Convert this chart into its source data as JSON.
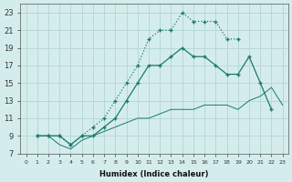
{
  "xlabel": "Humidex (Indice chaleur)",
  "background_color": "#d4edec",
  "grid_color": "#b8d8d5",
  "line_color": "#1a7a6e",
  "xlim": [
    -0.5,
    23.5
  ],
  "ylim": [
    7,
    24
  ],
  "xticks": [
    0,
    1,
    2,
    3,
    4,
    5,
    6,
    7,
    8,
    9,
    10,
    11,
    12,
    13,
    14,
    15,
    16,
    17,
    18,
    19,
    20,
    21,
    22,
    23
  ],
  "yticks": [
    7,
    9,
    11,
    13,
    15,
    17,
    19,
    21,
    23
  ],
  "line1_x": [
    1,
    2,
    3,
    4,
    5,
    6,
    7,
    8,
    9,
    10,
    11,
    12,
    13,
    14,
    15,
    16,
    17,
    18,
    19
  ],
  "line1_y": [
    9,
    9,
    9,
    8,
    9,
    10,
    11,
    13,
    15,
    17,
    20,
    21,
    21,
    23,
    22,
    22,
    22,
    20,
    20
  ],
  "line2_x": [
    1,
    2,
    3,
    4,
    5,
    6,
    7,
    8,
    9,
    10,
    11,
    12,
    13,
    14,
    15,
    16,
    17,
    18,
    19,
    20,
    21,
    22
  ],
  "line2_y": [
    9,
    9,
    9,
    8,
    9,
    9,
    10,
    11,
    13,
    15,
    17,
    17,
    18,
    19,
    18,
    18,
    17,
    16,
    16,
    18,
    15,
    12
  ],
  "line3_x": [
    1,
    2,
    3,
    4,
    5,
    6,
    7,
    8,
    9,
    10,
    11,
    12,
    13,
    14,
    15,
    16,
    17,
    18,
    19,
    20,
    21,
    22,
    23
  ],
  "line3_y": [
    9,
    9,
    8,
    7.5,
    8.5,
    9,
    9.5,
    10,
    10.5,
    11,
    11,
    11.5,
    12,
    12,
    12,
    12.5,
    12.5,
    12.5,
    12,
    13,
    13.5,
    14.5,
    12.5
  ]
}
